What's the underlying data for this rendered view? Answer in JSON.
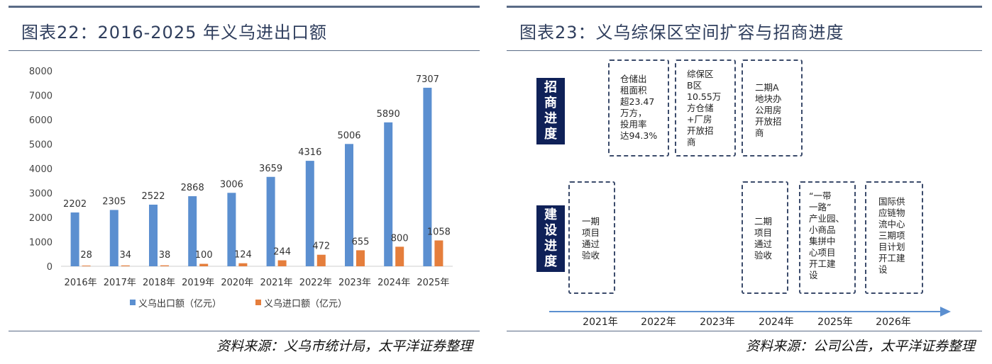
{
  "left": {
    "title": "图表22：2016-2025 年义乌进出口额",
    "source": "资料来源：义乌市统计局，太平洋证券整理"
  },
  "right": {
    "title": "图表23：义乌综保区空间扩容与招商进度",
    "source": "资料来源：公司公告，太平洋证券整理",
    "row_labels": {
      "invest": "招\n商\n进\n度",
      "build": "建\n设\n进\n度"
    },
    "invest_boxes": [
      {
        "year": "2022年",
        "text": "仓储出\n租面积\n超23.47\n万方，\n投用率\n达94.3%"
      },
      {
        "year": "2023年",
        "text": "综保区\nB区\n10.55万\n方仓储\n+厂房\n开放招\n商"
      },
      {
        "year": "2024年",
        "text": "二期A\n地块办\n公用房\n开放招\n商"
      }
    ],
    "build_boxes": [
      {
        "year": "2021年",
        "text": "一期\n项目\n通过\n验收"
      },
      {
        "year": "2024年",
        "text": "二期\n项目\n通过\n验收"
      },
      {
        "year": "2025年",
        "text": "“一带\n一路”\n产业园、\n小商品\n集拼中\n心项目\n开工建\n设"
      },
      {
        "year": "2026年",
        "text": "国际供\n应链物\n流中心\n三期项\n目计划\n开工建\n设"
      }
    ],
    "timeline_years": [
      "2021年",
      "2022年",
      "2023年",
      "2024年",
      "2025年",
      "2026年"
    ],
    "colors": {
      "label_bg": "#0f2158",
      "dash": "#3b4b6b",
      "arrow": "#5b8fd0"
    }
  },
  "chart_data": {
    "type": "bar",
    "categories": [
      "2016年",
      "2017年",
      "2018年",
      "2019年",
      "2020年",
      "2021年",
      "2022年",
      "2023年",
      "2024年",
      "2025年"
    ],
    "series": [
      {
        "name": "义乌出口额（亿元）",
        "values": [
          2202,
          2305,
          2522,
          2868,
          3006,
          3659,
          4316,
          5006,
          5890,
          7307
        ],
        "color": "#5b8fd0"
      },
      {
        "name": "义乌进口额（亿元）",
        "values": [
          28,
          34,
          38,
          100,
          124,
          244,
          472,
          655,
          800,
          1058
        ],
        "color": "#e57e3c"
      }
    ],
    "ylim": [
      0,
      8000
    ],
    "yticks": [
      0,
      1000,
      2000,
      3000,
      4000,
      5000,
      6000,
      7000,
      8000
    ],
    "grid": false,
    "legend": "bottom"
  }
}
